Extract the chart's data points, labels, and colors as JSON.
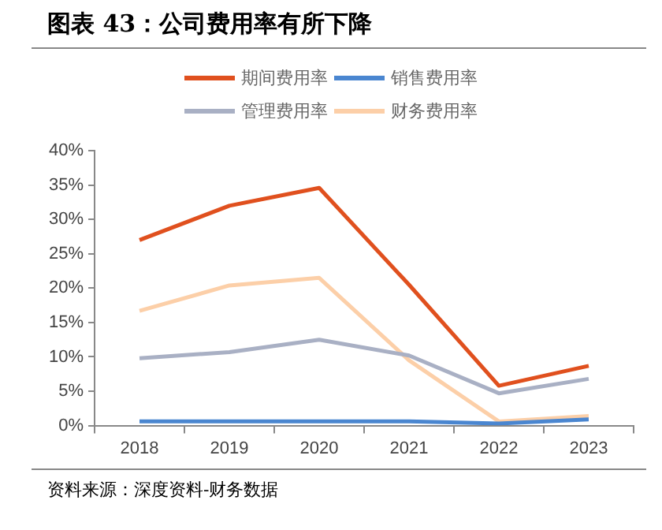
{
  "chart_data": {
    "type": "line",
    "title": "图表 43：公司费用率有所下降",
    "categories": [
      "2018",
      "2019",
      "2020",
      "2021",
      "2022",
      "2023"
    ],
    "series": [
      {
        "name": "期间费用率",
        "color": "#e0501e",
        "values": [
          27,
          32,
          34.6,
          20.5,
          5.8,
          8.7
        ]
      },
      {
        "name": "销售费用率",
        "color": "#4a86d0",
        "values": [
          0.6,
          0.6,
          0.6,
          0.6,
          0.3,
          0.9
        ]
      },
      {
        "name": "管理费用率",
        "color": "#a9b0c4",
        "values": [
          9.8,
          10.7,
          12.5,
          10.2,
          4.7,
          6.8
        ]
      },
      {
        "name": "财务费用率",
        "color": "#fccfa8",
        "values": [
          16.7,
          20.4,
          21.5,
          9.5,
          0.6,
          1.4
        ]
      }
    ],
    "ylim": [
      0,
      40
    ],
    "yticks": [
      {
        "value": 0,
        "label": "0%"
      },
      {
        "value": 5,
        "label": "5%"
      },
      {
        "value": 10,
        "label": "10%"
      },
      {
        "value": 15,
        "label": "15%"
      },
      {
        "value": 20,
        "label": "20%"
      },
      {
        "value": 25,
        "label": "25%"
      },
      {
        "value": 30,
        "label": "30%"
      },
      {
        "value": 35,
        "label": "35%"
      },
      {
        "value": 40,
        "label": "40%"
      }
    ],
    "grid": false,
    "legend": "top",
    "marker": "none",
    "line_style": "solid",
    "annotations": [
      "资料来源：深度资料-财务数据"
    ]
  }
}
